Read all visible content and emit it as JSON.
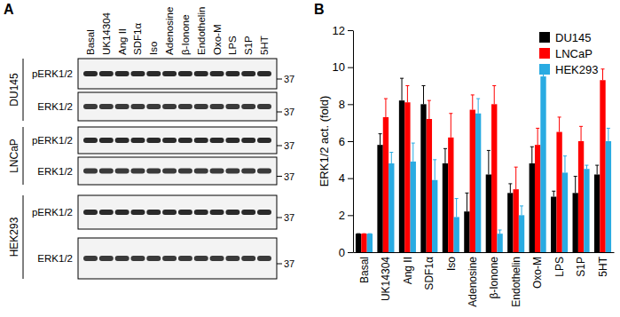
{
  "panel_labels": [
    "A",
    "B"
  ],
  "blot": {
    "lanes": [
      "Basal",
      "UK14304",
      "Ang II",
      "SDF1α",
      "Iso",
      "Adenosine",
      "β-Ionone",
      "Endothelin",
      "Oxo-M",
      "LPS",
      "S1P",
      "5HT"
    ],
    "cell_lines": [
      "DU145",
      "LNCaP",
      "HEK293"
    ],
    "rows": [
      "pERK1/2",
      "ERK1/2"
    ],
    "marker": 37
  },
  "chart_data": {
    "type": "bar",
    "ylabel": "ERK1/2 act. (fold)",
    "categories": [
      "Basal",
      "UK14304",
      "Ang II",
      "SDF1α",
      "Iso",
      "Adenosine",
      "β-Ionone",
      "Endothelin",
      "Oxo-M",
      "LPS",
      "S1P",
      "5HT"
    ],
    "series": [
      {
        "name": "DU145",
        "color": "#000000",
        "values": [
          1,
          5.8,
          8.2,
          8.0,
          4.8,
          2.2,
          4.2,
          3.2,
          4.8,
          3.0,
          3.2,
          4.2
        ],
        "errors": [
          0,
          0.6,
          1.2,
          1.0,
          0.8,
          1.0,
          1.3,
          0.5,
          0.9,
          0.3,
          0.9,
          0.5
        ]
      },
      {
        "name": "LNCaP",
        "color": "#ff0000",
        "values": [
          1,
          7.3,
          8.1,
          7.2,
          6.2,
          7.7,
          8.0,
          3.4,
          5.8,
          6.5,
          6.0,
          9.3
        ],
        "errors": [
          0,
          1.0,
          0.9,
          1.0,
          1.3,
          0.8,
          1.0,
          1.2,
          0.9,
          0.8,
          0.8,
          0.6
        ]
      },
      {
        "name": "HEK293",
        "color": "#29abe2",
        "values": [
          1,
          4.8,
          4.9,
          3.9,
          1.9,
          7.5,
          1.0,
          2.0,
          9.5,
          4.3,
          4.5,
          6.0
        ],
        "errors": [
          0,
          0.6,
          1.0,
          1.1,
          1.0,
          0.8,
          0.2,
          0.5,
          0.6,
          0.9,
          0.2,
          0.7
        ]
      }
    ],
    "ylim": [
      0,
      12
    ],
    "yticks": [
      0,
      2,
      4,
      6,
      8,
      10,
      12
    ],
    "grid": false,
    "legend": "upper right"
  }
}
